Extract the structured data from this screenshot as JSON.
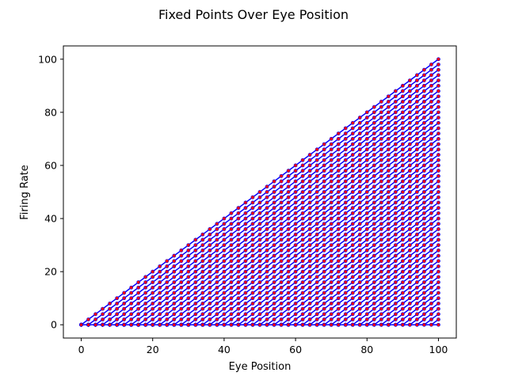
{
  "chart_data": {
    "type": "line",
    "title": "Fixed Points Over Eye Position",
    "xlabel": "Eye Position",
    "ylabel": "Firing Rate",
    "xlim": [
      -5,
      105
    ],
    "ylim": [
      -5,
      105
    ],
    "x_ticks": [
      0,
      20,
      40,
      60,
      80,
      100
    ],
    "y_ticks": [
      0,
      20,
      40,
      60,
      80,
      100
    ],
    "x_tick_labels": [
      "0",
      "20",
      "40",
      "60",
      "80",
      "100"
    ],
    "y_tick_labels": [
      "0",
      "20",
      "40",
      "60",
      "80",
      "100"
    ],
    "grid": false,
    "legend": "none",
    "line_color": "#0000ff",
    "marker_color": "#ff0000",
    "x": [
      0,
      2,
      4,
      6,
      8,
      10,
      12,
      14,
      16,
      18,
      20,
      22,
      24,
      26,
      28,
      30,
      32,
      34,
      36,
      38,
      40,
      42,
      44,
      46,
      48,
      50,
      52,
      54,
      56,
      58,
      60,
      62,
      64,
      66,
      68,
      70,
      72,
      74,
      76,
      78,
      80,
      82,
      84,
      86,
      88,
      90,
      92,
      94,
      96,
      98,
      100
    ],
    "series_description": "Fan of neuron fixed-point curves: for each threshold t in 0,2,...,100 the firing rate is max(0, x - t) across eye positions x",
    "thresholds": [
      0,
      2,
      4,
      6,
      8,
      10,
      12,
      14,
      16,
      18,
      20,
      22,
      24,
      26,
      28,
      30,
      32,
      34,
      36,
      38,
      40,
      42,
      44,
      46,
      48,
      50,
      52,
      54,
      56,
      58,
      60,
      62,
      64,
      66,
      68,
      70,
      72,
      74,
      76,
      78,
      80,
      82,
      84,
      86,
      88,
      90,
      92,
      94,
      96,
      98,
      100
    ]
  }
}
